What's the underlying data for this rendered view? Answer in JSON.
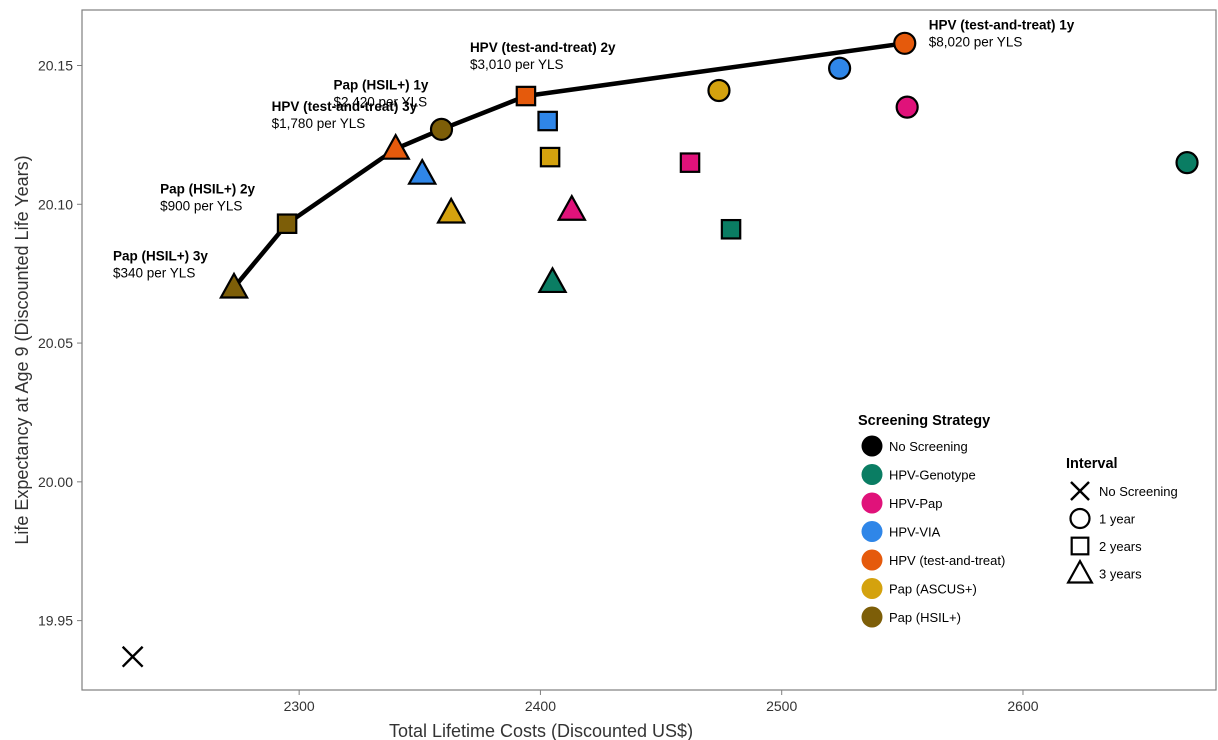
{
  "chart_data": {
    "type": "scatter",
    "title": "",
    "xlabel": "Total Lifetime Costs (Discounted US$)",
    "ylabel": "Life Expectancy at Age 9 (Discounted Life Years)",
    "xlim": [
      2210,
      2680
    ],
    "ylim": [
      19.925,
      20.17
    ],
    "x_ticks": [
      2300,
      2400,
      2500,
      2600
    ],
    "y_ticks": [
      19.95,
      20.0,
      20.05,
      20.1,
      20.15
    ],
    "x_tick_labels": [
      "2300",
      "2400",
      "2500",
      "2600"
    ],
    "y_tick_labels": [
      "19.95",
      "20.00",
      "20.05",
      "20.10",
      "20.15"
    ],
    "grid": false,
    "strategy_colors": {
      "No Screening": "#000000",
      "HPV-Genotype": "#0a7d63",
      "HPV-Pap": "#e0127a",
      "HPV-VIA": "#2f86e8",
      "HPV (test-and-treat)": "#e55a0c",
      "Pap (ASCUS+)": "#d4a20e",
      "Pap (HSIL+)": "#7d5e08"
    },
    "points": [
      {
        "strategy": "No Screening",
        "interval": "No Screening",
        "x": 2231,
        "y": 19.937
      },
      {
        "strategy": "Pap (HSIL+)",
        "interval": "3 years",
        "x": 2273,
        "y": 20.07
      },
      {
        "strategy": "Pap (HSIL+)",
        "interval": "2 years",
        "x": 2295,
        "y": 20.093
      },
      {
        "strategy": "Pap (HSIL+)",
        "interval": "1 year",
        "x": 2359,
        "y": 20.127
      },
      {
        "strategy": "HPV (test-and-treat)",
        "interval": "3 years",
        "x": 2340,
        "y": 20.12
      },
      {
        "strategy": "HPV (test-and-treat)",
        "interval": "2 years",
        "x": 2394,
        "y": 20.139
      },
      {
        "strategy": "HPV (test-and-treat)",
        "interval": "1 year",
        "x": 2551,
        "y": 20.158
      },
      {
        "strategy": "HPV-VIA",
        "interval": "3 years",
        "x": 2351,
        "y": 20.111
      },
      {
        "strategy": "HPV-VIA",
        "interval": "2 years",
        "x": 2403,
        "y": 20.13
      },
      {
        "strategy": "HPV-VIA",
        "interval": "1 year",
        "x": 2524,
        "y": 20.149
      },
      {
        "strategy": "Pap (ASCUS+)",
        "interval": "3 years",
        "x": 2363,
        "y": 20.097
      },
      {
        "strategy": "Pap (ASCUS+)",
        "interval": "2 years",
        "x": 2404,
        "y": 20.117
      },
      {
        "strategy": "Pap (ASCUS+)",
        "interval": "1 year",
        "x": 2474,
        "y": 20.141
      },
      {
        "strategy": "HPV-Pap",
        "interval": "3 years",
        "x": 2413,
        "y": 20.098
      },
      {
        "strategy": "HPV-Pap",
        "interval": "2 years",
        "x": 2462,
        "y": 20.115
      },
      {
        "strategy": "HPV-Pap",
        "interval": "1 year",
        "x": 2552,
        "y": 20.135
      },
      {
        "strategy": "HPV-Genotype",
        "interval": "3 years",
        "x": 2405,
        "y": 20.072
      },
      {
        "strategy": "HPV-Genotype",
        "interval": "2 years",
        "x": 2479,
        "y": 20.091
      },
      {
        "strategy": "HPV-Genotype",
        "interval": "1 year",
        "x": 2668,
        "y": 20.115
      }
    ],
    "efficiency_frontier": [
      [
        2273,
        20.07
      ],
      [
        2295,
        20.093
      ],
      [
        2340,
        20.12
      ],
      [
        2359,
        20.127
      ],
      [
        2394,
        20.139
      ],
      [
        2551,
        20.158
      ]
    ],
    "annotations": [
      {
        "title": "Pap (HSIL+) 3y",
        "sub": "$340 per YLS",
        "x": 2273,
        "y": 20.07
      },
      {
        "title": "Pap (HSIL+) 2y",
        "sub": "$900 per YLS",
        "x": 2295,
        "y": 20.093
      },
      {
        "title": "HPV (test-and-treat) 3y",
        "sub": "$1,780 per YLS",
        "x": 2340,
        "y": 20.12
      },
      {
        "title": "Pap (HSIL+) 1y",
        "sub": "$2,420 per YLS",
        "x": 2359,
        "y": 20.127
      },
      {
        "title": "HPV (test-and-treat) 2y",
        "sub": "$3,010 per YLS",
        "x": 2394,
        "y": 20.139
      },
      {
        "title": "HPV (test-and-treat) 1y",
        "sub": "$8,020 per YLS",
        "x": 2551,
        "y": 20.158
      }
    ],
    "legend_strategy": {
      "title": "Screening Strategy",
      "entries": [
        "No Screening",
        "HPV-Genotype",
        "HPV-Pap",
        "HPV-VIA",
        "HPV (test-and-treat)",
        "Pap (ASCUS+)",
        "Pap (HSIL+)"
      ]
    },
    "legend_interval": {
      "title": "Interval",
      "entries": [
        "No Screening",
        "1 year",
        "2 years",
        "3 years"
      ]
    },
    "legend_position": "bottom-right inside"
  }
}
